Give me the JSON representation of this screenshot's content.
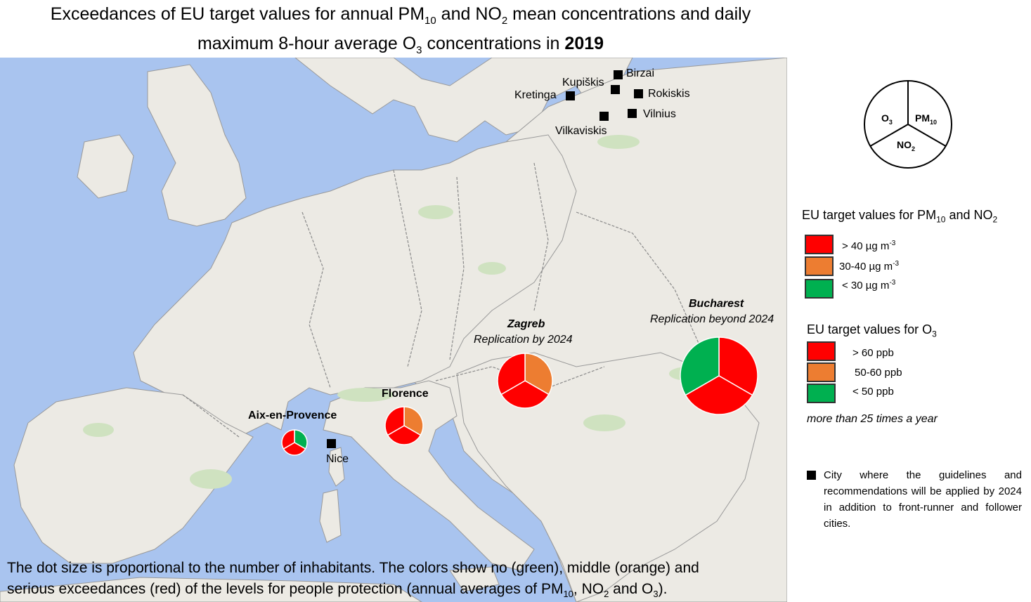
{
  "title": {
    "part1": "Exceedances of EU target values for annual PM",
    "sub1": "10",
    "part2": " and NO",
    "sub2": "2",
    "part3": " mean concentrations and daily",
    "part4": "maximum 8-hour average O",
    "sub3": "3",
    "part5": " concentrations in ",
    "year": "2019"
  },
  "cities_planned": [
    {
      "name": "Birzai"
    },
    {
      "name": "Kupiškis"
    },
    {
      "name": "Kretinga"
    },
    {
      "name": "Rokiskis"
    },
    {
      "name": "Vilnius"
    },
    {
      "name": "Vilkaviskis"
    },
    {
      "name": "Nice"
    }
  ],
  "pie_cities": [
    {
      "name": "Aix-en-Provence",
      "subtitle": "",
      "o3": "green",
      "pm10": "red",
      "no2": "red"
    },
    {
      "name": "Florence",
      "subtitle": "",
      "o3": "red",
      "pm10": "orange",
      "no2": "red"
    },
    {
      "name": "Zagreb",
      "subtitle": "Replication by 2024",
      "o3": "red",
      "pm10": "orange",
      "no2": "red"
    },
    {
      "name": "Bucharest",
      "subtitle": "Replication beyond 2024",
      "o3": "green",
      "pm10": "red",
      "no2": "red"
    }
  ],
  "colors": {
    "red": "#ff0000",
    "orange": "#ed7d31",
    "green": "#00b050",
    "square": "#000000"
  },
  "legend_pie": {
    "o3": "O",
    "o3_sub": "3",
    "pm10": "PM",
    "pm10_sub": "10",
    "no2": "NO",
    "no2_sub": "2"
  },
  "legend_pm": {
    "title_a": "EU target values for PM",
    "title_sub": "10",
    "title_b": " and NO",
    "title_sub2": "2",
    "items": [
      {
        "label": "> 40 µg m",
        "sup": "-3",
        "color": "#ff0000"
      },
      {
        "label": "30-40 µg m",
        "sup": "-3",
        "color": "#ed7d31"
      },
      {
        "label": "< 30 µg m",
        "sup": "-3",
        "color": "#00b050"
      }
    ]
  },
  "legend_o3": {
    "title_a": "EU target values for O",
    "title_sub": "3",
    "items": [
      {
        "label": "> 60 ppb",
        "color": "#ff0000"
      },
      {
        "label": "50-60 ppb",
        "color": "#ed7d31"
      },
      {
        "label": "< 50 ppb",
        "color": "#00b050"
      }
    ],
    "note": "more than 25 times a year"
  },
  "city_note": "City where the guidelines and recommendations will be applied by 2024 in addition to front-runner and follower cities.",
  "bottom_note": {
    "line1": "The dot size is proportional to the number of inhabitants. The colors show no (green), middle (orange) and",
    "line2a": "serious exceedances (red) of the levels for people protection (annual averages of PM",
    "sub1": "10",
    "line2b": ", NO",
    "sub2": "2",
    "line2c": " and O",
    "sub3": "3",
    "line2d": ")."
  }
}
